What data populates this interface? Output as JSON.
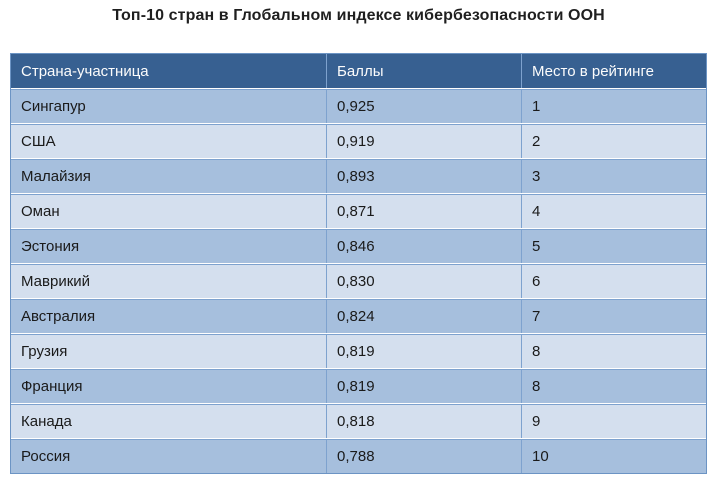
{
  "title": "Топ-10 стран в Глобальном индексе кибербезопасности ООН",
  "chart_data": {
    "type": "table",
    "title": "Топ-10 стран в Глобальном индексе кибербезопасности ООН",
    "columns": [
      "Страна-участница",
      "Баллы",
      "Место в рейтинге"
    ],
    "rows": [
      {
        "country": "Сингапур",
        "score": "0,925",
        "rank": "1"
      },
      {
        "country": "США",
        "score": "0,919",
        "rank": "2"
      },
      {
        "country": "Малайзия",
        "score": "0,893",
        "rank": "3"
      },
      {
        "country": "Оман",
        "score": "0,871",
        "rank": "4"
      },
      {
        "country": "Эстония",
        "score": "0,846",
        "rank": "5"
      },
      {
        "country": "Маврикий",
        "score": "0,830",
        "rank": "6"
      },
      {
        "country": "Австралия",
        "score": "0,824",
        "rank": "7"
      },
      {
        "country": "Грузия",
        "score": "0,819",
        "rank": "8"
      },
      {
        "country": "Франция",
        "score": "0,819",
        "rank": "8"
      },
      {
        "country": "Канада",
        "score": "0,818",
        "rank": "9"
      },
      {
        "country": "Россия",
        "score": "0,788",
        "rank": "10"
      }
    ],
    "colors": {
      "header_background": "#376091",
      "header_text": "#fcfcfc",
      "row_stripe_dark": "#a6bfdd",
      "row_stripe_light": "#d4dfee",
      "grid_line": "#7ea2ce",
      "outer_border": "#6c94c4",
      "body_text": "#1a1a1a",
      "title_text": "#1f1f1f"
    }
  }
}
